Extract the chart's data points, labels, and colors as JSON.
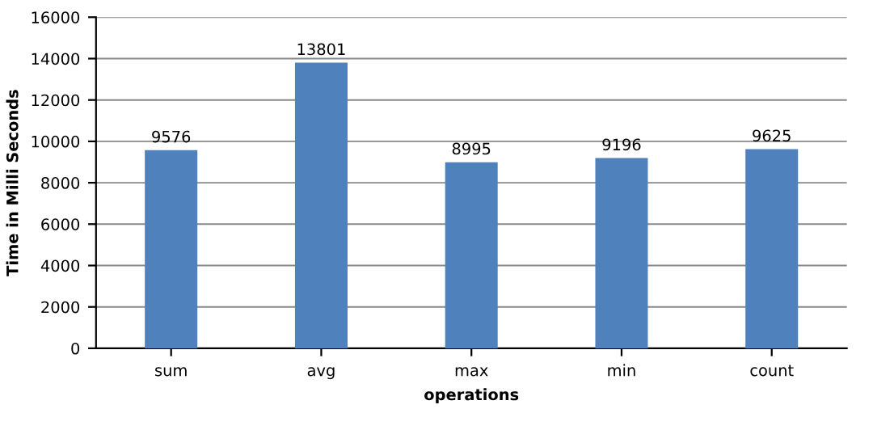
{
  "chart_data": {
    "type": "bar",
    "xlabel": "operations",
    "ylabel": "Time in Milli Seconds",
    "categories": [
      "sum",
      "avg",
      "max",
      "min",
      "count"
    ],
    "values": [
      9576,
      13801,
      8995,
      9196,
      9625
    ],
    "color": "#4f81bd",
    "data_labels": true,
    "grid": "y",
    "ylim": [
      0,
      16000
    ],
    "yticks": [
      0,
      2000,
      4000,
      6000,
      8000,
      10000,
      12000,
      14000,
      16000
    ]
  }
}
